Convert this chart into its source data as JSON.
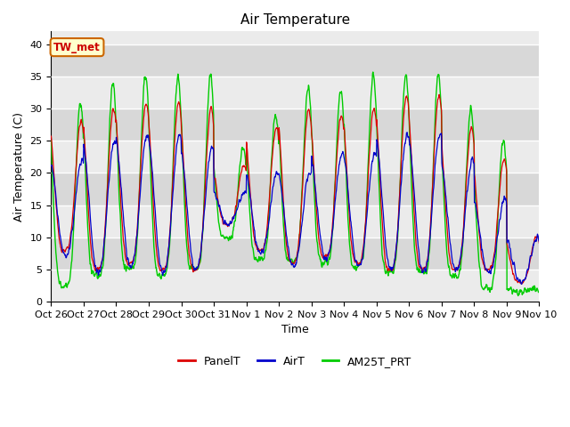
{
  "title": "Air Temperature",
  "ylabel": "Air Temperature (C)",
  "xlabel": "Time",
  "annotation": "TW_met",
  "ylim": [
    0,
    42
  ],
  "yticks": [
    0,
    5,
    10,
    15,
    20,
    25,
    30,
    35,
    40
  ],
  "x_tick_labels": [
    "Oct 26",
    "Oct 27",
    "Oct 28",
    "Oct 29",
    "Oct 30",
    "Oct 31",
    "Nov 1",
    "Nov 2",
    "Nov 3",
    "Nov 4",
    "Nov 5",
    "Nov 6",
    "Nov 7",
    "Nov 8",
    "Nov 9",
    "Nov 10"
  ],
  "panel_color": "#dd0000",
  "air_color": "#0000cc",
  "am25t_color": "#00cc00",
  "legend_labels": [
    "PanelT",
    "AirT",
    "AM25T_PRT"
  ],
  "bg_color_light": "#ebebeb",
  "bg_color_dark": "#d8d8d8",
  "title_fontsize": 11,
  "axis_fontsize": 9,
  "tick_fontsize": 8,
  "annotation_facecolor": "#ffffcc",
  "annotation_edgecolor": "#cc6600",
  "annotation_textcolor": "#cc0000",
  "n_days": 15,
  "n_per_day": 96,
  "daily_mins_panel": [
    8,
    5,
    6,
    5,
    5,
    12,
    8,
    6,
    7,
    6,
    5,
    5,
    5,
    5,
    3
  ],
  "daily_maxs_panel": [
    28,
    30,
    31,
    31,
    30,
    21,
    27,
    30,
    29,
    30,
    32,
    32,
    27,
    22,
    10
  ],
  "daily_mins_air": [
    7,
    4.5,
    5.5,
    4.5,
    5,
    12,
    7.5,
    5.5,
    6.5,
    5.5,
    5,
    4.5,
    5,
    4.5,
    3
  ],
  "daily_maxs_air": [
    22,
    25,
    26,
    26,
    24,
    17,
    20,
    20,
    23,
    23,
    26,
    26,
    22,
    16,
    10
  ],
  "daily_mins_am25t": [
    2.5,
    4,
    5,
    4,
    5,
    10,
    6.5,
    6.5,
    6,
    5.5,
    4.5,
    4.5,
    4,
    2,
    1.5
  ],
  "daily_maxs_am25t": [
    31,
    34,
    35,
    35,
    35,
    24,
    29,
    33,
    33,
    35,
    35,
    35,
    30,
    25,
    2
  ]
}
